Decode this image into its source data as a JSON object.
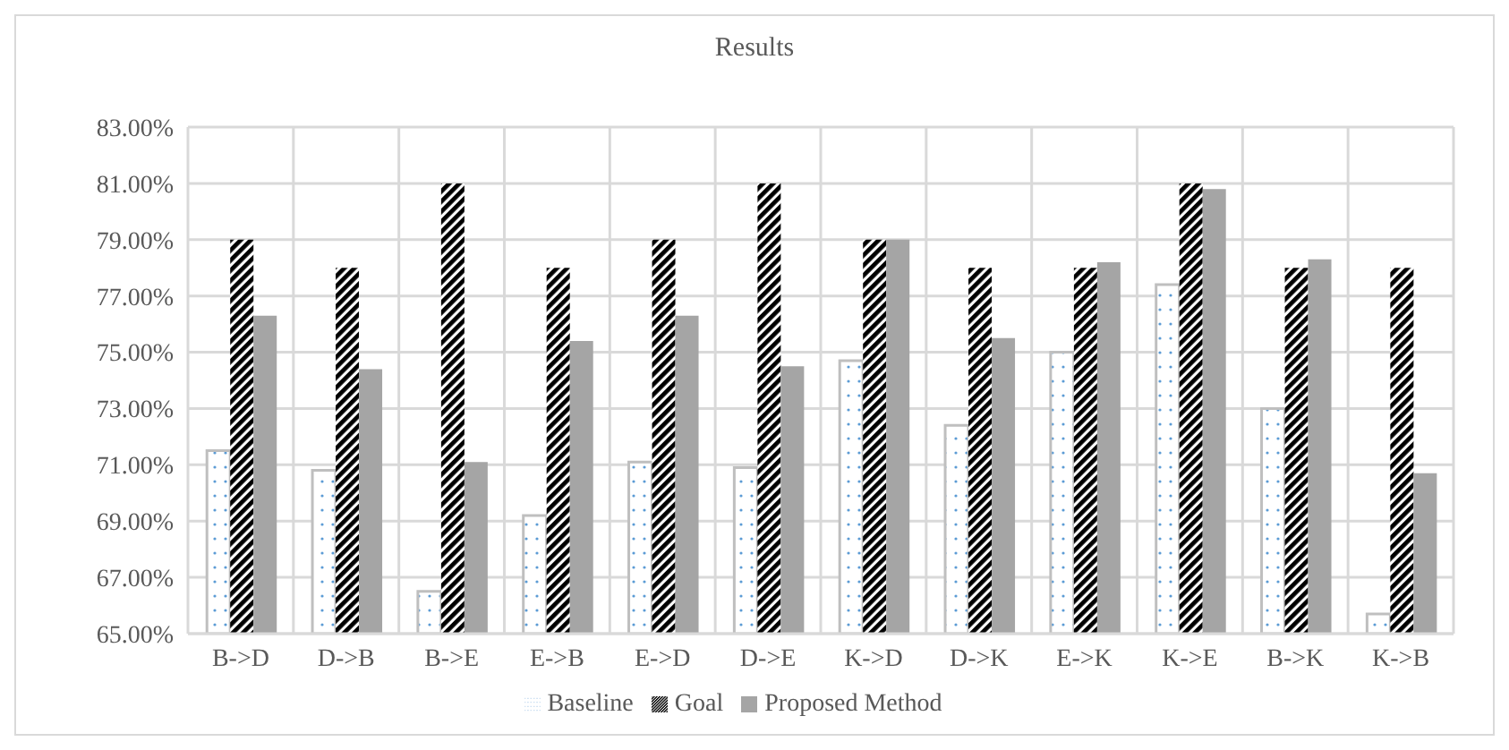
{
  "chart_data": {
    "type": "bar",
    "title": "Results",
    "categories": [
      "B->D",
      "D->B",
      "B->E",
      "E->B",
      "E->D",
      "D->E",
      "K->D",
      "D->K",
      "E->K",
      "K->E",
      "B->K",
      "K->B"
    ],
    "series": [
      {
        "name": "Baseline",
        "color": "#bfbfbf",
        "values": [
          71.5,
          70.8,
          66.5,
          69.2,
          71.1,
          70.9,
          74.7,
          72.4,
          75.0,
          77.4,
          73.0,
          65.7
        ]
      },
      {
        "name": "Goal",
        "color": "#000000",
        "values": [
          79,
          78,
          81,
          78,
          79,
          81,
          79,
          78,
          78,
          81,
          78,
          78
        ]
      },
      {
        "name": "Proposed Method",
        "color": "#a5a5a5",
        "values": [
          76.3,
          74.4,
          71.1,
          75.4,
          76.3,
          74.5,
          79.0,
          75.5,
          78.2,
          80.8,
          78.3,
          70.7
        ]
      }
    ],
    "ylim": [
      65,
      83
    ],
    "yticks": [
      {
        "value": 65,
        "label": "65.00%"
      },
      {
        "value": 67,
        "label": "67.00%"
      },
      {
        "value": 69,
        "label": "69.00%"
      },
      {
        "value": 71,
        "label": "71.00%"
      },
      {
        "value": 73,
        "label": "73.00%"
      },
      {
        "value": 75,
        "label": "75.00%"
      },
      {
        "value": 77,
        "label": "77.00%"
      },
      {
        "value": 79,
        "label": "79.00%"
      },
      {
        "value": 81,
        "label": "81.00%"
      },
      {
        "value": 83,
        "label": "83.00%"
      }
    ],
    "grid": true,
    "legend": "bottom"
  }
}
